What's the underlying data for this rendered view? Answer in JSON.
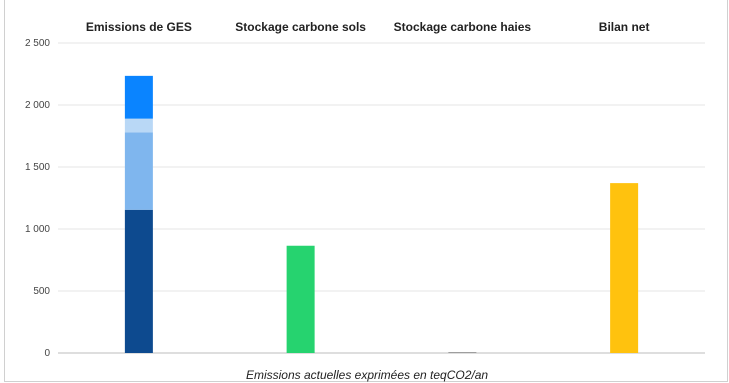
{
  "chart_data": {
    "type": "bar",
    "stacked": true,
    "categories": [
      "Emissions de GES",
      "Stockage carbone sols",
      "Stockage carbone haies",
      "Bilan net"
    ],
    "category_label_placement": "top",
    "y_ticks": [
      "0",
      "500",
      "1 000",
      "1 500",
      "2 000",
      "2 500"
    ],
    "ylim": [
      0,
      2500
    ],
    "grid": true,
    "xlabel": "Emissions actuelles exprimées en teqCO2/an",
    "bars": [
      {
        "category": "Emissions de GES",
        "segments": [
          {
            "value": 1155,
            "color": "#0d4a8f"
          },
          {
            "value": 625,
            "color": "#7fb6ee"
          },
          {
            "value": 110,
            "color": "#b9d8f6"
          },
          {
            "value": 345,
            "color": "#0a84ff"
          }
        ]
      },
      {
        "category": "Stockage carbone sols",
        "segments": [
          {
            "value": 865,
            "color": "#26d36f"
          }
        ]
      },
      {
        "category": "Stockage carbone haies",
        "segments": [
          {
            "value": 0,
            "color": "#9e9e9e"
          }
        ]
      },
      {
        "category": "Bilan net",
        "segments": [
          {
            "value": 1370,
            "color": "#ffc20e"
          }
        ]
      }
    ]
  }
}
